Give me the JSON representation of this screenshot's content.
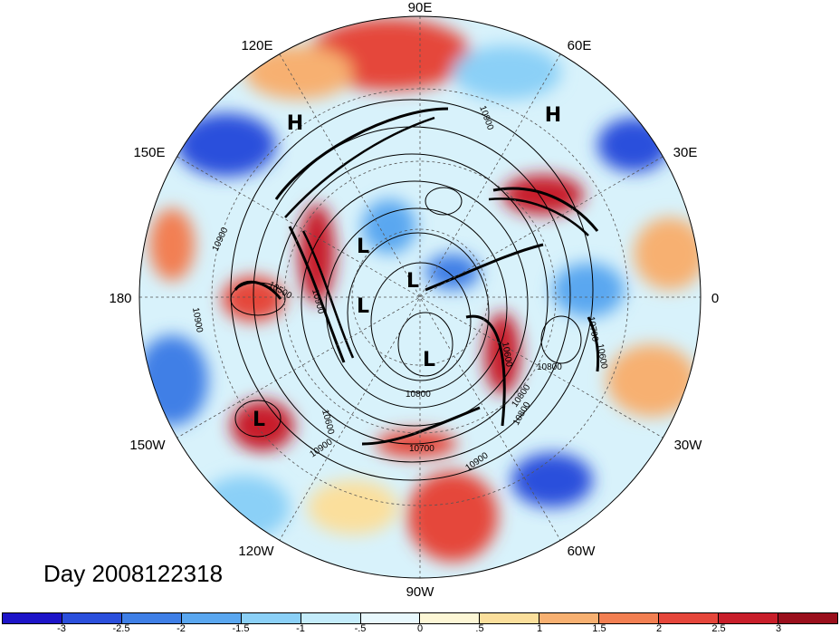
{
  "title": "Day 2008122318",
  "longitude_labels": {
    "top": "90E",
    "top_left": "120E",
    "top_right": "60E",
    "upper_left": "150E",
    "upper_right": "30E",
    "left": "180",
    "right": "0",
    "lower_left": "150W",
    "lower_right": "30W",
    "bottom_left": "120W",
    "bottom_right": "60W",
    "bottom": "90W"
  },
  "pressure_systems": [
    {
      "type": "H",
      "label": "H"
    },
    {
      "type": "H",
      "label": "H"
    },
    {
      "type": "L",
      "label": "L"
    },
    {
      "type": "L",
      "label": "L"
    },
    {
      "type": "L",
      "label": "L"
    },
    {
      "type": "L",
      "label": "L"
    },
    {
      "type": "L",
      "label": "L"
    }
  ],
  "contour_labels": [
    "10900",
    "10900",
    "10500",
    "10900",
    "10800",
    "10600",
    "10900",
    "10800",
    "10700",
    "10900",
    "10800",
    "10600",
    "10600",
    "10700",
    "10800",
    "10900"
  ],
  "colorbar": {
    "colors": [
      "#1d14c8",
      "#2b4fdc",
      "#3f7fe6",
      "#5aa7f0",
      "#8bd0f7",
      "#c4ecfb",
      "#e8f8fd",
      "#fdf7d6",
      "#fbdf9c",
      "#f7b071",
      "#f27f52",
      "#e5463b",
      "#c81e2a",
      "#9a0f1c"
    ],
    "ticks": [
      "-3",
      "-2.5",
      "-2",
      "-1.5",
      "-1",
      "-.5",
      "0",
      ".5",
      "1",
      "1.5",
      "2",
      "2.5",
      "3"
    ]
  }
}
